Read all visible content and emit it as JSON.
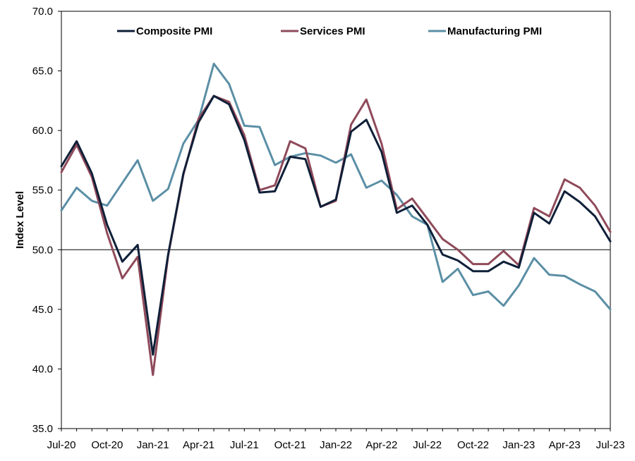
{
  "chart_data": {
    "type": "line",
    "title": "",
    "xlabel": "",
    "ylabel": "Index Level",
    "ylim": [
      35,
      70
    ],
    "yticks": [
      "35.0",
      "40.0",
      "45.0",
      "50.0",
      "55.0",
      "60.0",
      "65.0",
      "70.0"
    ],
    "reference_line": 50,
    "legend_position": "top",
    "x": [
      "Jul-20",
      "Aug-20",
      "Sep-20",
      "Oct-20",
      "Nov-20",
      "Dec-20",
      "Jan-21",
      "Feb-21",
      "Mar-21",
      "Apr-21",
      "May-21",
      "Jun-21",
      "Jul-21",
      "Aug-21",
      "Sep-21",
      "Oct-21",
      "Nov-21",
      "Dec-21",
      "Jan-22",
      "Feb-22",
      "Mar-22",
      "Apr-22",
      "May-22",
      "Jun-22",
      "Jul-22",
      "Aug-22",
      "Sep-22",
      "Oct-22",
      "Nov-22",
      "Dec-22",
      "Jan-23",
      "Feb-23",
      "Mar-23",
      "Apr-23",
      "May-23",
      "Jun-23",
      "Jul-23"
    ],
    "xtick_labels": [
      "Jul-20",
      "Oct-20",
      "Jan-21",
      "Apr-21",
      "Jul-21",
      "Oct-21",
      "Jan-22",
      "Apr-22",
      "Jul-22",
      "Oct-22",
      "Jan-23",
      "Apr-23",
      "Jul-23"
    ],
    "series": [
      {
        "name": "Composite PMI",
        "color": "#0f1f38",
        "values": [
          57.0,
          59.1,
          56.4,
          52.1,
          49.0,
          50.4,
          41.2,
          49.6,
          56.4,
          60.7,
          62.9,
          62.2,
          59.2,
          54.8,
          54.9,
          57.8,
          57.6,
          53.6,
          54.2,
          59.9,
          60.9,
          58.2,
          53.1,
          53.7,
          52.1,
          49.6,
          49.1,
          48.2,
          48.2,
          49.0,
          48.5,
          53.1,
          52.2,
          54.9,
          54.0,
          52.8,
          50.7
        ]
      },
      {
        "name": "Services PMI",
        "color": "#8f4a5a",
        "values": [
          56.5,
          58.8,
          56.1,
          51.4,
          47.6,
          49.4,
          39.5,
          49.5,
          56.3,
          61.0,
          62.9,
          62.4,
          59.6,
          55.0,
          55.4,
          59.1,
          58.5,
          53.6,
          54.1,
          60.5,
          62.6,
          58.9,
          53.4,
          54.3,
          52.6,
          50.9,
          50.0,
          48.8,
          48.8,
          49.9,
          48.7,
          53.5,
          52.8,
          55.9,
          55.2,
          53.7,
          51.5
        ]
      },
      {
        "name": "Manufacturing PMI",
        "color": "#5b8fa5",
        "values": [
          53.3,
          55.2,
          54.1,
          53.7,
          55.6,
          57.5,
          54.1,
          55.1,
          58.9,
          60.9,
          65.6,
          63.9,
          60.4,
          60.3,
          57.1,
          57.8,
          58.1,
          57.9,
          57.3,
          58.0,
          55.2,
          55.8,
          54.6,
          52.8,
          52.1,
          47.3,
          48.4,
          46.2,
          46.5,
          45.3,
          47.0,
          49.3,
          47.9,
          47.8,
          47.1,
          46.5,
          45.0
        ]
      }
    ]
  }
}
